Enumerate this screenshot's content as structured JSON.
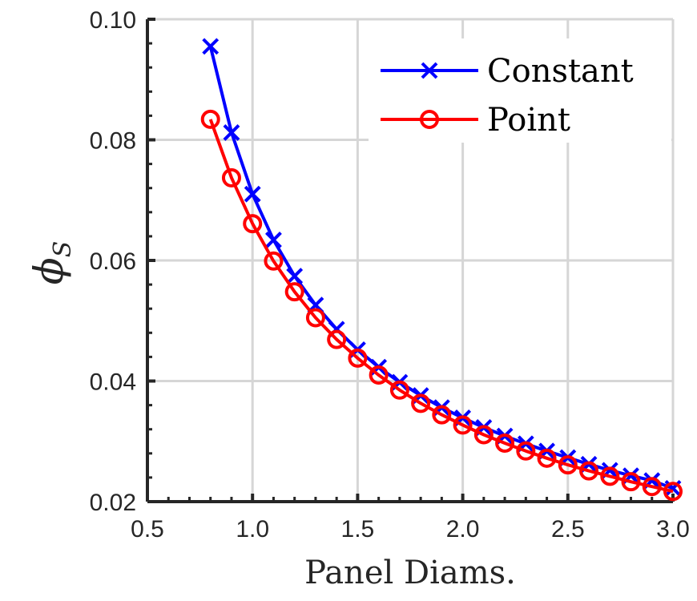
{
  "chart_data": {
    "type": "line",
    "title": "",
    "xlabel": "Panel Diams.",
    "ylabel": {
      "main": "ϕ",
      "sub": "S"
    },
    "xlim": [
      0.5,
      3.0
    ],
    "ylim": [
      0.02,
      0.1
    ],
    "xticks": [
      0.5,
      1.0,
      1.5,
      2.0,
      2.5,
      3.0
    ],
    "xtick_labels": [
      "0.5",
      "1.0",
      "1.5",
      "2.0",
      "2.5",
      "3.0"
    ],
    "yticks": [
      0.02,
      0.04,
      0.06,
      0.08,
      0.1
    ],
    "ytick_labels": [
      "0.02",
      "0.04",
      "0.06",
      "0.08",
      "0.10"
    ],
    "grid": true,
    "legend_position": "top-right",
    "x": [
      0.8,
      0.9,
      1.0,
      1.1,
      1.2,
      1.3,
      1.4,
      1.5,
      1.6,
      1.7,
      1.8,
      1.9,
      2.0,
      2.1,
      2.2,
      2.3,
      2.4,
      2.5,
      2.6,
      2.7,
      2.8,
      2.9,
      3.0
    ],
    "series": [
      {
        "name": "Constant",
        "color": "#0000ff",
        "marker": "x",
        "values": [
          0.0955,
          0.0812,
          0.071,
          0.0634,
          0.0574,
          0.0526,
          0.0486,
          0.0452,
          0.0423,
          0.0398,
          0.0376,
          0.0356,
          0.0339,
          0.0323,
          0.0309,
          0.0296,
          0.0284,
          0.0273,
          0.0262,
          0.0252,
          0.0243,
          0.0235,
          0.0222
        ]
      },
      {
        "name": "Point",
        "color": "#ff0000",
        "marker": "o",
        "values": [
          0.0834,
          0.0737,
          0.0661,
          0.0599,
          0.0548,
          0.0505,
          0.0469,
          0.0438,
          0.041,
          0.0385,
          0.0363,
          0.0344,
          0.0327,
          0.0311,
          0.0297,
          0.0284,
          0.0272,
          0.0261,
          0.0251,
          0.0242,
          0.0233,
          0.0225,
          0.0217
        ]
      }
    ]
  }
}
